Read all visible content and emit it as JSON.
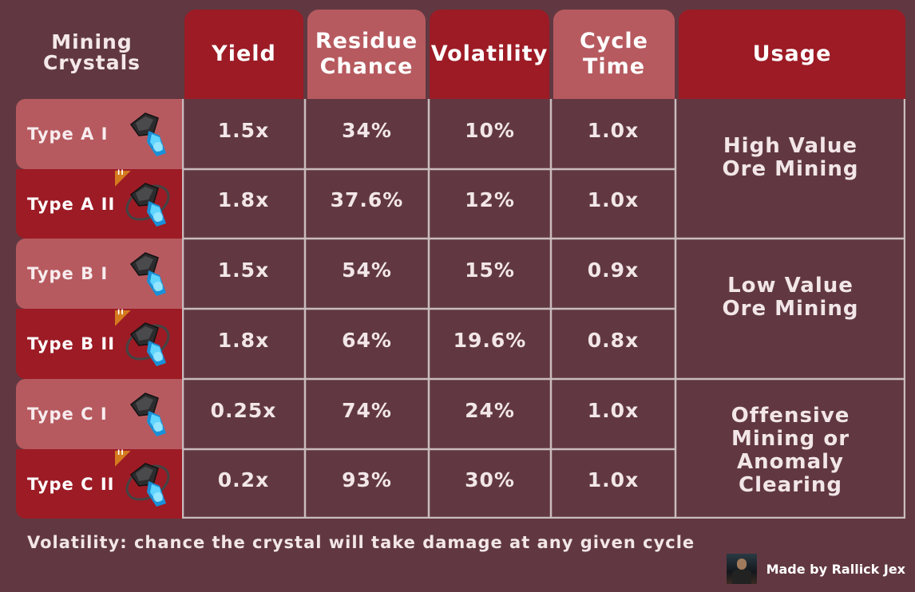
{
  "title": "Mining Crystals",
  "columns": [
    {
      "label": "Yield",
      "tone": "dark"
    },
    {
      "label": "Residue Chance",
      "tone": "light"
    },
    {
      "label": "Volatility",
      "tone": "dark"
    },
    {
      "label": "Cycle Time",
      "tone": "light"
    },
    {
      "label": "Usage",
      "tone": "dark"
    }
  ],
  "rows": [
    {
      "name": "Type A I",
      "tier": "I",
      "yield": "1.5x",
      "residue": "34%",
      "volatility": "10%",
      "cycle": "1.0x"
    },
    {
      "name": "Type A II",
      "tier": "II",
      "yield": "1.8x",
      "residue": "37.6%",
      "volatility": "12%",
      "cycle": "1.0x"
    },
    {
      "name": "Type B I",
      "tier": "I",
      "yield": "1.5x",
      "residue": "54%",
      "volatility": "15%",
      "cycle": "0.9x"
    },
    {
      "name": "Type B II",
      "tier": "II",
      "yield": "1.8x",
      "residue": "64%",
      "volatility": "19.6%",
      "cycle": "0.8x"
    },
    {
      "name": "Type C I",
      "tier": "I",
      "yield": "0.25x",
      "residue": "74%",
      "volatility": "24%",
      "cycle": "1.0x"
    },
    {
      "name": "Type C II",
      "tier": "II",
      "yield": "0.2x",
      "residue": "93%",
      "volatility": "30%",
      "cycle": "1.0x"
    }
  ],
  "tier_badge_text": "II",
  "usage": [
    "High Value Ore Mining",
    "Low Value Ore Mining",
    "Offensive Mining or Anomaly Clearing"
  ],
  "footnote": "Volatility: chance the crystal will take damage at any given cycle",
  "credit": "Made by Rallick Jex",
  "colors": {
    "background": "#613841",
    "header_dark": "#9c1b25",
    "header_light": "#b65a5f",
    "grid_line": "#c9bcbf",
    "tier_badge": "#d47a1e",
    "crystal_glow": "#2fb6f0"
  }
}
